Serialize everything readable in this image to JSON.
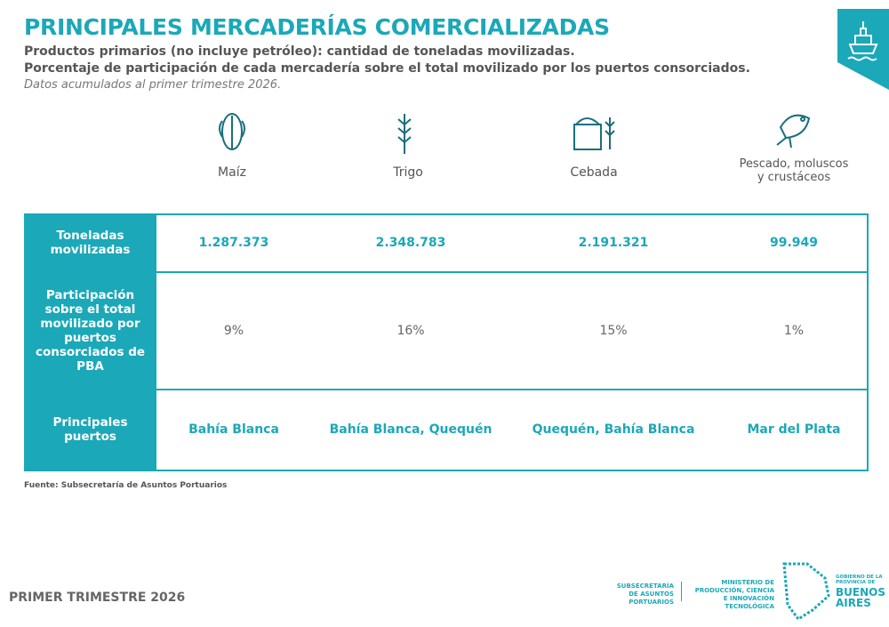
{
  "header": {
    "title": "PRINCIPALES MERCADERÍAS COMERCIALIZADAS",
    "subtitle_lines": [
      "Productos primarios (no incluye petróleo): cantidad de toneladas movilizadas.",
      "Porcentaje de participación de cada mercadería sobre el total movilizado por los puertos consorciados."
    ],
    "note": "Datos acumulados al primer trimestre 2026."
  },
  "table": {
    "columns": [
      "Maíz",
      "Trigo",
      "Cebada",
      "Pescado, moluscos y crustáceos"
    ],
    "rows": [
      {
        "label": "Toneladas movilizadas",
        "cells": [
          "1.287.373",
          "2.348.783",
          "2.191.321",
          "99.949"
        ]
      },
      {
        "label": "Participación sobre el total movilizado por puertos consorciados de PBA",
        "cells": [
          "9%",
          "16%",
          "15%",
          "1%"
        ]
      },
      {
        "label": "Principales puertos",
        "cells": [
          "Bahía Blanca",
          "Bahía Blanca, Quequén",
          "Quequén, Bahía Blanca",
          "Mar del Plata"
        ]
      }
    ]
  },
  "source": "Fuente: Subsecretaría de Asuntos Portuarios",
  "footer": {
    "period": "PRIMER TRIMESTRE 2026",
    "logo_subsecretaria": "SUBSECRETARÍA DE ASUNTOS PORTUARIOS",
    "logo_ministerio": "MINISTERIO DE PRODUCCIÓN, CIENCIA E INNOVACIÓN TECNOLÓGICA",
    "logo_gobierno": "GOBIERNO DE LA PROVINCIA DE",
    "logo_pba": "BUENOS AIRES"
  }
}
